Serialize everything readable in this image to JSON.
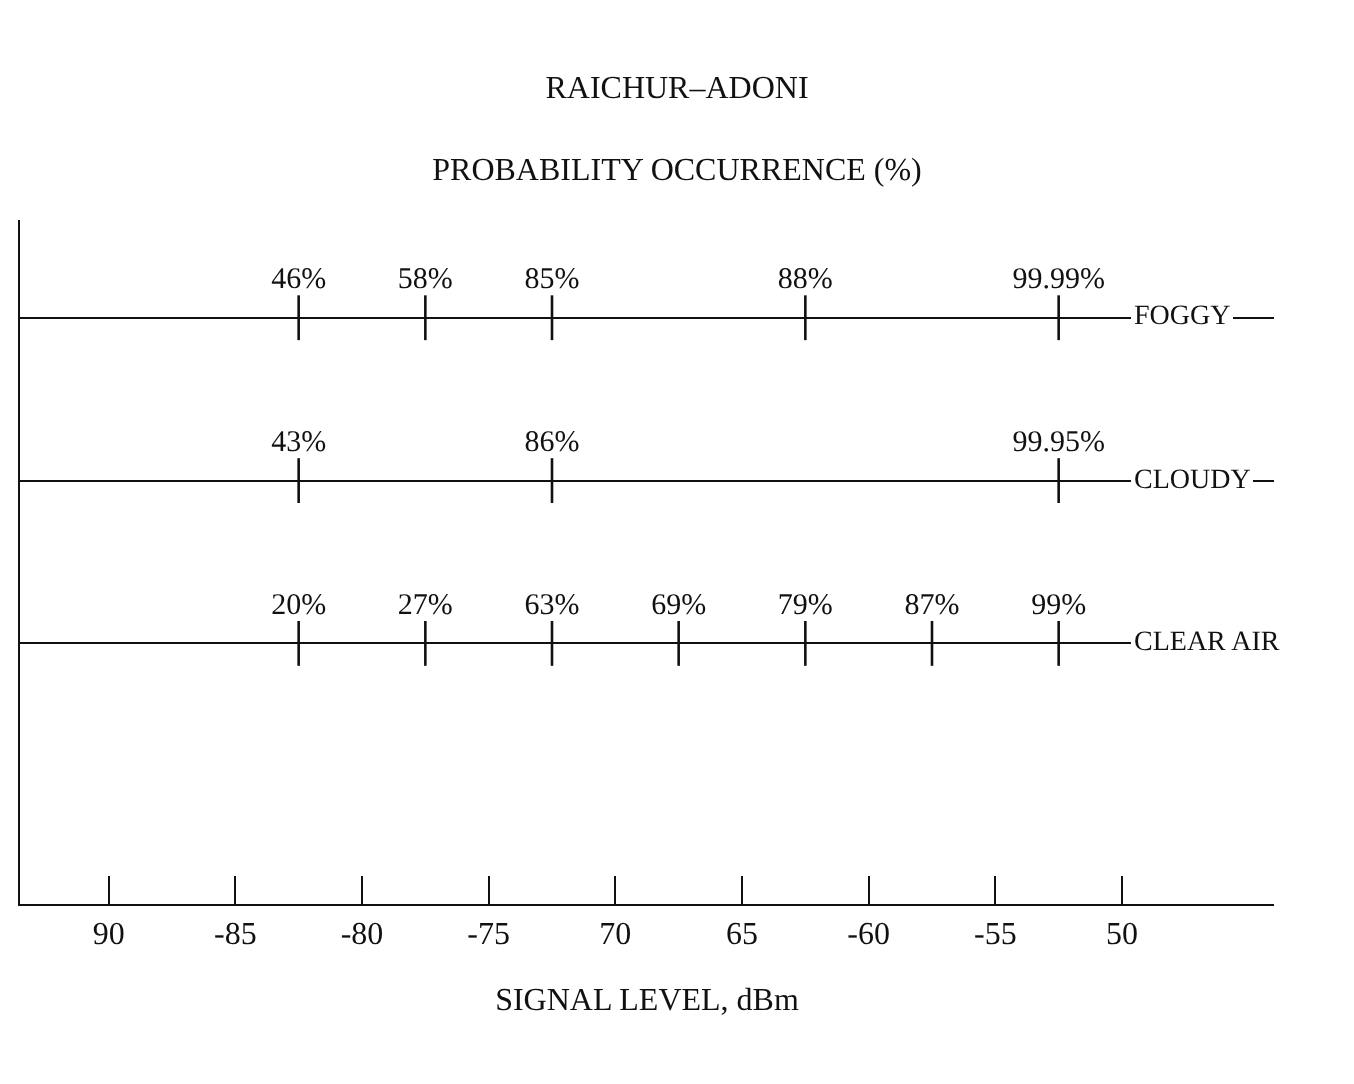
{
  "chart_data": {
    "type": "heatmap",
    "title": "RAICHUR–ADONI",
    "subtitle": "PROBABILITY OCCURRENCE (%)",
    "xlabel": "SIGNAL LEVEL, dBm",
    "x": [
      -82.5,
      -77.5,
      -72.5,
      -67.5,
      -62.5,
      -57.5,
      -52.5
    ],
    "y_categories": [
      "FOGGY",
      "CLOUDY",
      "CLEAR AIR"
    ],
    "cells": [
      [
        46,
        58,
        85,
        null,
        88,
        null,
        99.99
      ],
      [
        43,
        null,
        86,
        null,
        null,
        null,
        99.95
      ],
      [
        20,
        27,
        63,
        69,
        79,
        87,
        99
      ]
    ],
    "cell_labels": [
      [
        "46%",
        "58%",
        "85%",
        null,
        "88%",
        null,
        "99.99%"
      ],
      [
        "43%",
        null,
        "86%",
        null,
        null,
        null,
        "99.95%"
      ],
      [
        "20%",
        "27%",
        "63%",
        "69%",
        "79%",
        "87%",
        "99%"
      ]
    ],
    "xlim": [
      -93.5,
      -44
    ],
    "xticks": [
      {
        "value": -90,
        "label": "90"
      },
      -85,
      -80,
      -75,
      {
        "value": -70,
        "label": "70"
      },
      {
        "value": -65,
        "label": "65"
      },
      -60,
      -55,
      {
        "value": -50,
        "label": "50"
      }
    ],
    "grid": "y"
  }
}
